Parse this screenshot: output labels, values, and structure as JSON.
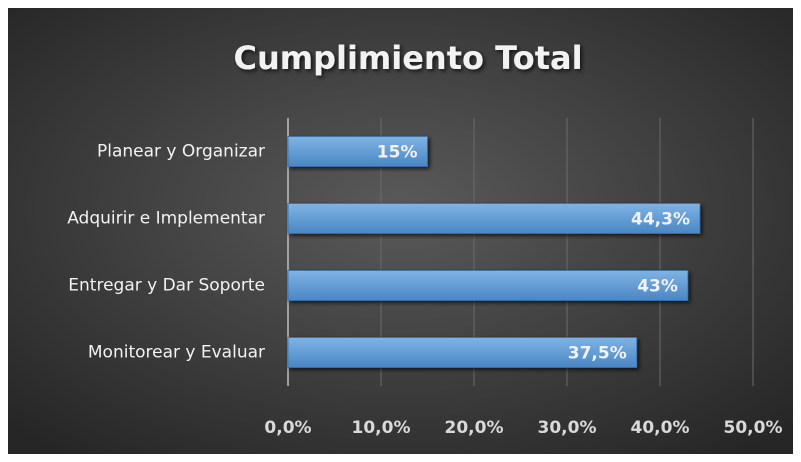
{
  "chart_data": {
    "type": "barh",
    "title": "Cumplimiento Total",
    "categories": [
      "Planear y Organizar",
      "Adquirir e Implementar",
      "Entregar y Dar Soporte",
      "Monitorear y Evaluar"
    ],
    "values": [
      15,
      44.3,
      43,
      37.5
    ],
    "value_labels": [
      "15%",
      "44,3%",
      "43%",
      "37,5%"
    ],
    "color": "#5b9bd5",
    "xlim": [
      0,
      50
    ],
    "xticks": [
      {
        "value": 0,
        "label": "0,0%"
      },
      {
        "value": 10,
        "label": "10,0%"
      },
      {
        "value": 20,
        "label": "20,0%"
      },
      {
        "value": 30,
        "label": "30,0%"
      },
      {
        "value": 40,
        "label": "40,0%"
      },
      {
        "value": 50,
        "label": "50,0%"
      }
    ],
    "grid": true
  }
}
